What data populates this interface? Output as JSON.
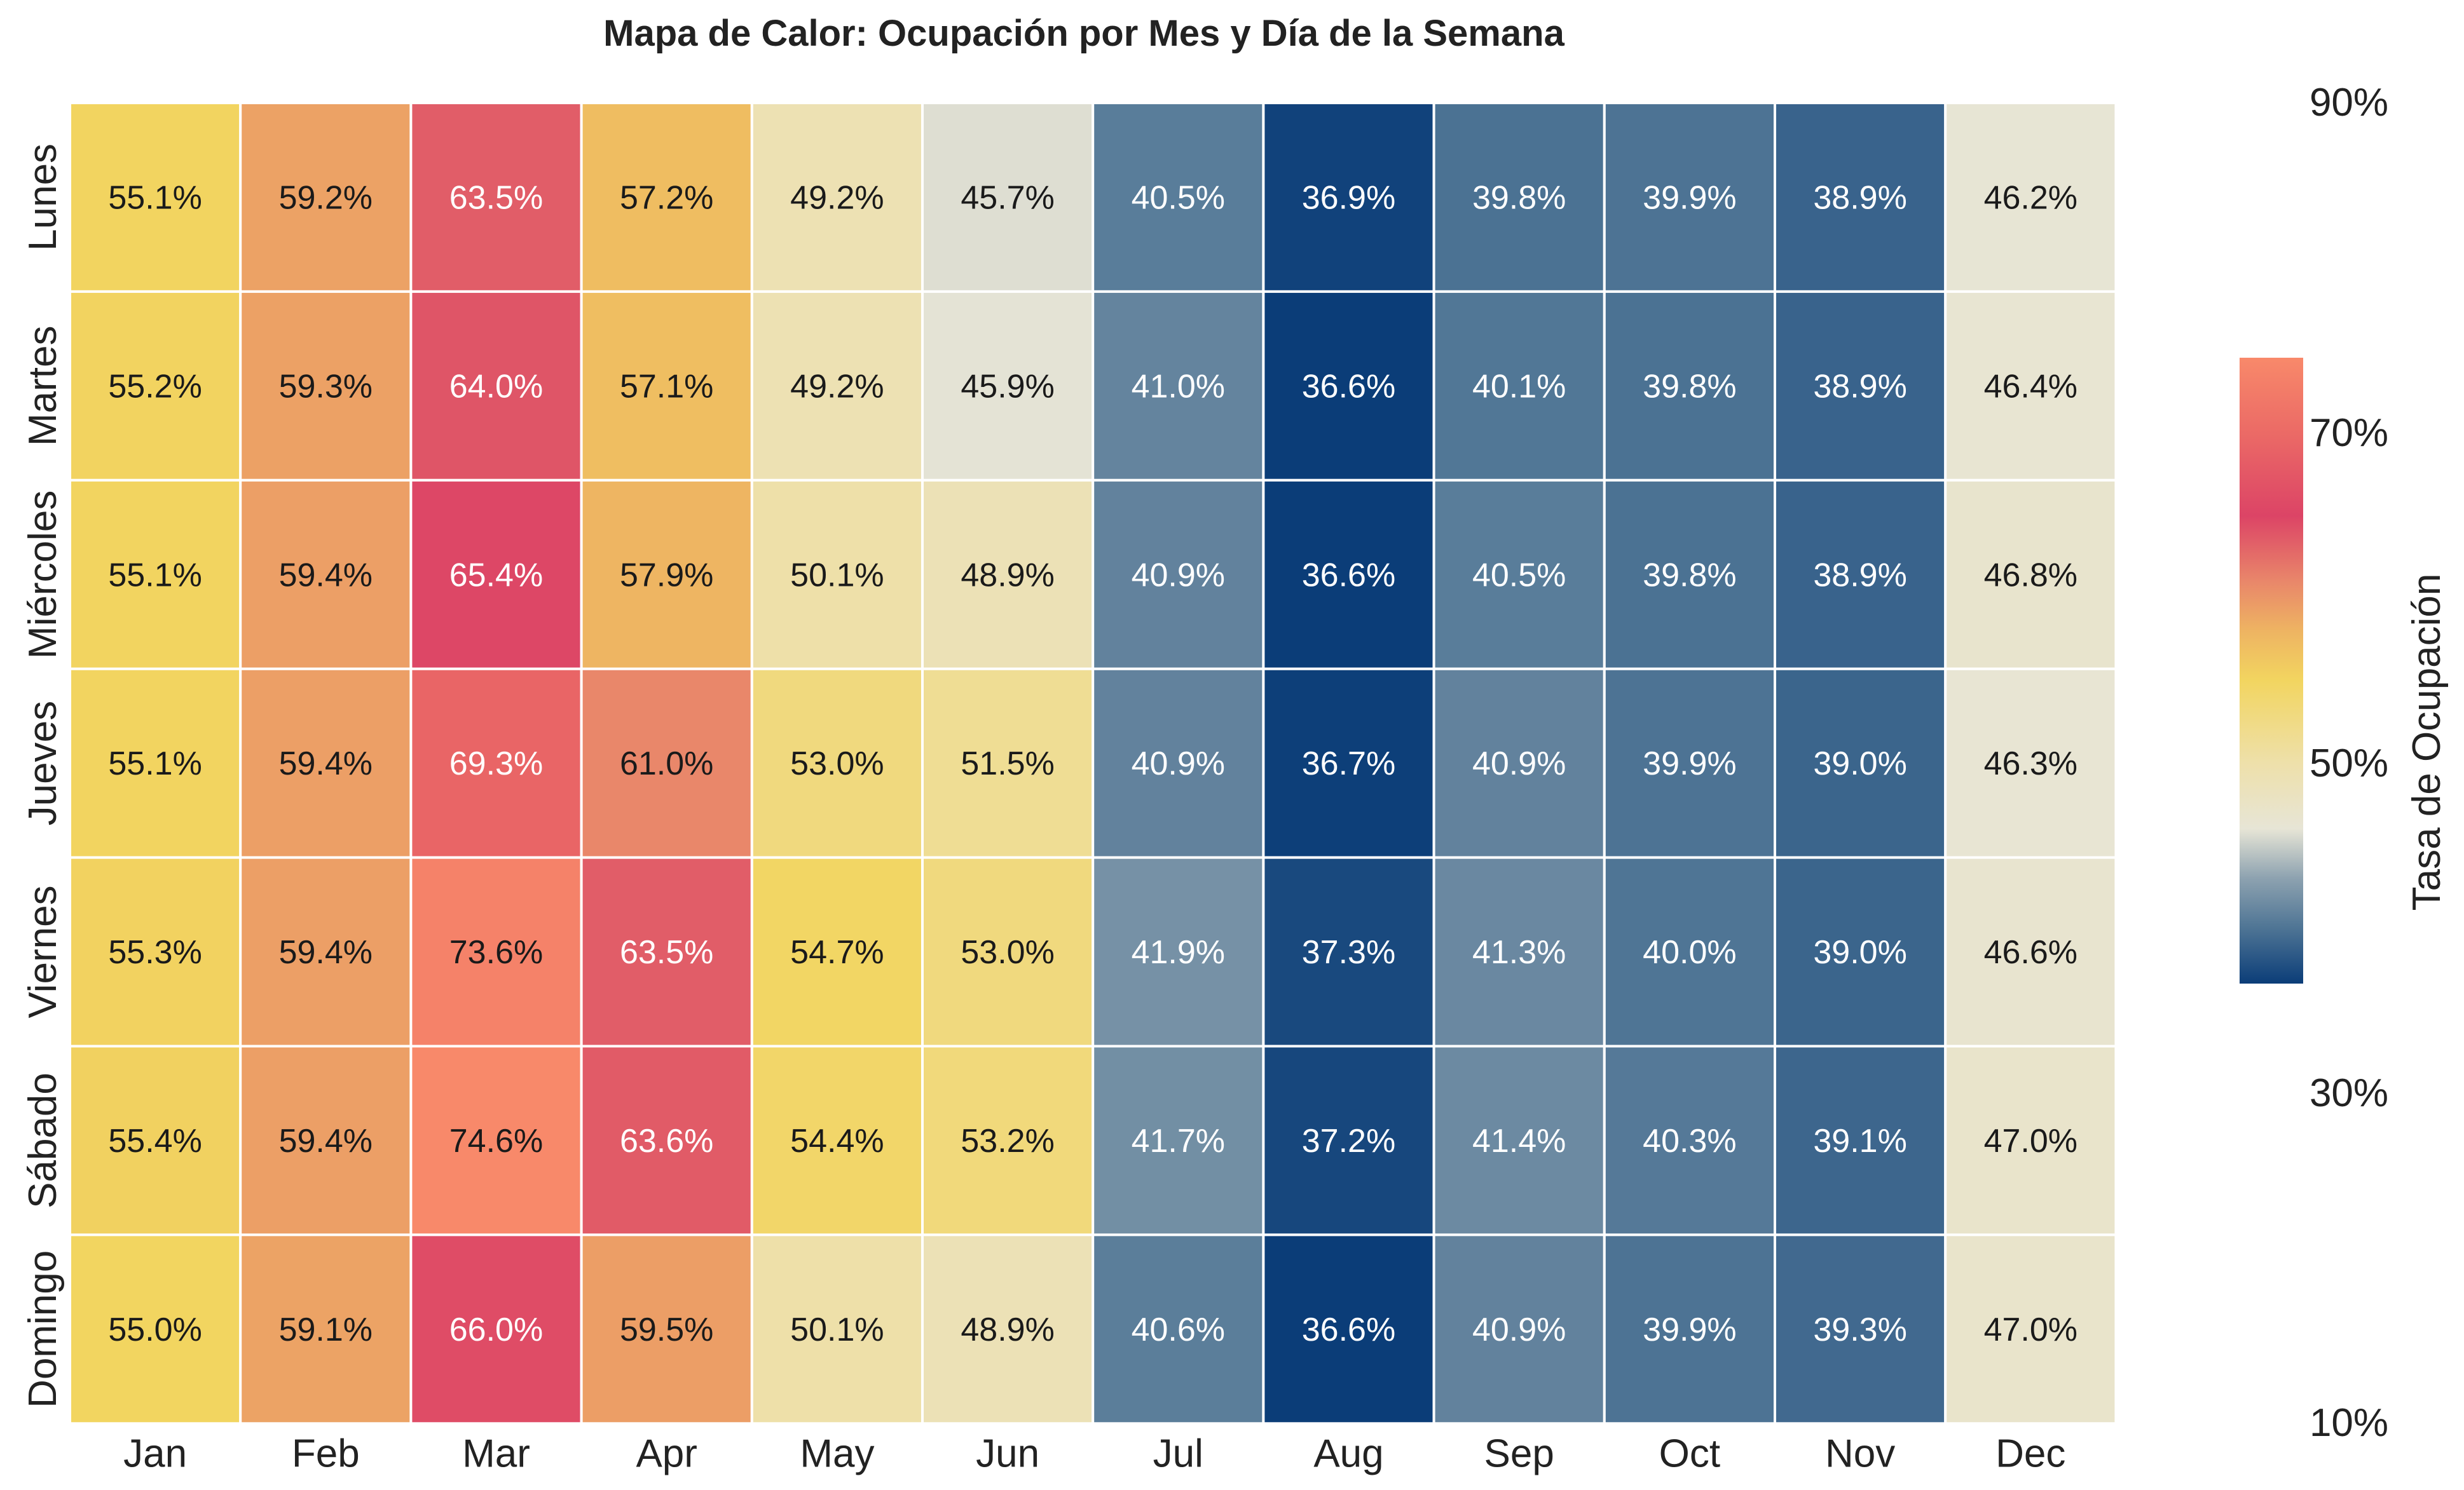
{
  "chart_data": {
    "type": "heatmap",
    "title": "Mapa de Calor: Ocupación por Mes y Día de la Semana",
    "x_categories": [
      "Jan",
      "Feb",
      "Mar",
      "Apr",
      "May",
      "Jun",
      "Jul",
      "Aug",
      "Sep",
      "Oct",
      "Nov",
      "Dec"
    ],
    "y_categories": [
      "Lunes",
      "Martes",
      "Miércoles",
      "Jueves",
      "Viernes",
      "Sábado",
      "Domingo"
    ],
    "values": [
      [
        55.1,
        59.2,
        63.5,
        57.2,
        49.2,
        45.7,
        40.5,
        36.9,
        39.8,
        39.9,
        38.9,
        46.2
      ],
      [
        55.2,
        59.3,
        64.0,
        57.1,
        49.2,
        45.9,
        41.0,
        36.6,
        40.1,
        39.8,
        38.9,
        46.4
      ],
      [
        55.1,
        59.4,
        65.4,
        57.9,
        50.1,
        48.9,
        40.9,
        36.6,
        40.5,
        39.8,
        38.9,
        46.8
      ],
      [
        55.1,
        59.4,
        69.3,
        61.0,
        53.0,
        51.5,
        40.9,
        36.7,
        40.9,
        39.9,
        39.0,
        46.3
      ],
      [
        55.3,
        59.4,
        73.6,
        63.5,
        54.7,
        53.0,
        41.9,
        37.3,
        41.3,
        40.0,
        39.0,
        46.6
      ],
      [
        55.4,
        59.4,
        74.6,
        63.6,
        54.4,
        53.2,
        41.7,
        37.2,
        41.4,
        40.3,
        39.1,
        47.0
      ],
      [
        55.0,
        59.1,
        66.0,
        59.5,
        50.1,
        48.9,
        40.6,
        36.6,
        40.9,
        39.9,
        39.3,
        47.0
      ]
    ],
    "value_format": "percent_1dp",
    "colorbar": {
      "label": "Tasa de Ocupación",
      "range": [
        36.6,
        74.6
      ],
      "ticks": [
        "90%",
        "70%",
        "50%",
        "30%",
        "10%"
      ],
      "tick_values": [
        90,
        70,
        50,
        30,
        10
      ],
      "colormap": [
        {
          "v": 36.6,
          "color": "#0b3d78"
        },
        {
          "v": 40.0,
          "color": "#4f7595"
        },
        {
          "v": 43.0,
          "color": "#8da2b0"
        },
        {
          "v": 46.0,
          "color": "#e7e5d6"
        },
        {
          "v": 50.0,
          "color": "#eee0aa"
        },
        {
          "v": 55.0,
          "color": "#f2d560"
        },
        {
          "v": 58.0,
          "color": "#eeb462"
        },
        {
          "v": 61.0,
          "color": "#e9876a"
        },
        {
          "v": 65.0,
          "color": "#dc4466"
        },
        {
          "v": 70.0,
          "color": "#eb6a66"
        },
        {
          "v": 74.6,
          "color": "#f8896a"
        }
      ]
    },
    "grid": false,
    "cell_border_color": "#ffffff"
  },
  "colors": {
    "text_dark": "#1a1a1a",
    "text_light": "#ffffff",
    "axis_text": "#222222",
    "background": "#ffffff"
  }
}
